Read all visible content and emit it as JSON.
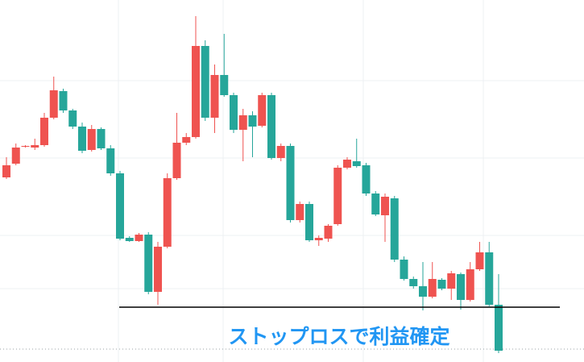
{
  "chart_data": {
    "type": "candlestick",
    "annotation": "ストップロスで利益確定",
    "ylim": [
      0,
      449
    ],
    "up_color": "#ef5350",
    "down_color": "#26a69a",
    "stop_line": 68,
    "open": [
      229,
      246,
      268,
      266,
      269,
      303,
      336,
      312,
      292,
      263,
      289,
      265,
      234,
      154,
      150,
      158,
      87,
      143,
      228,
      272,
      279,
      392,
      303,
      356,
      331,
      288,
      306,
      293,
      331,
      253,
      268,
      176,
      196,
      151,
      153,
      171,
      241,
      249,
      244,
      209,
      182,
      203,
      127,
      103,
      94,
      81,
      102,
      91,
      109,
      77,
      115,
      136,
      71
    ],
    "high": [
      254,
      271,
      269,
      277,
      309,
      354,
      339,
      314,
      297,
      294,
      291,
      269,
      237,
      156,
      160,
      161,
      149,
      234,
      309,
      284,
      429,
      399,
      369,
      407,
      334,
      314,
      311,
      334,
      334,
      271,
      271,
      199,
      199,
      157,
      171,
      244,
      254,
      277,
      247,
      212,
      209,
      206,
      131,
      106,
      124,
      124,
      104,
      113,
      111,
      124,
      149,
      149,
      109
    ],
    "low": [
      227,
      244,
      266,
      263,
      267,
      301,
      309,
      289,
      259,
      261,
      263,
      231,
      151,
      149,
      149,
      84,
      71,
      141,
      226,
      269,
      277,
      299,
      284,
      329,
      284,
      249,
      254,
      291,
      251,
      249,
      173,
      173,
      149,
      144,
      149,
      169,
      239,
      241,
      206,
      181,
      149,
      124,
      101,
      91,
      64,
      79,
      89,
      77,
      65,
      75,
      113,
      69,
      11
    ],
    "close": [
      244,
      266,
      268,
      269,
      303,
      337,
      312,
      292,
      262,
      289,
      265,
      234,
      153,
      150,
      158,
      87,
      143,
      228,
      272,
      279,
      392,
      303,
      356,
      331,
      288,
      306,
      292,
      331,
      253,
      268,
      176,
      196,
      151,
      154,
      169,
      241,
      251,
      243,
      209,
      183,
      205,
      127,
      103,
      94,
      81,
      103,
      91,
      110,
      77,
      115,
      136,
      71,
      14
    ]
  }
}
